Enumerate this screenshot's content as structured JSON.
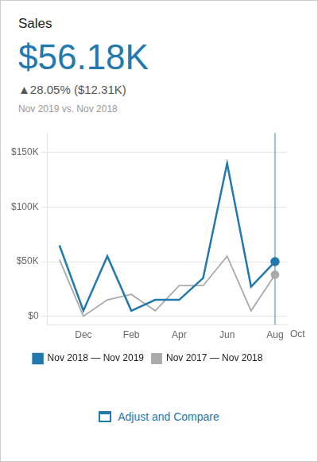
{
  "chart_data": {
    "type": "line",
    "title": "Sales",
    "subtitle": "$56.18K",
    "annotations": [
      "▲28.05% ($12.31K)",
      "Nov 2019 vs. Nov 2018",
      "Oct",
      "Adjust and Compare"
    ],
    "categories": [
      null,
      "Dec",
      null,
      "Feb",
      null,
      "Apr",
      null,
      "Jun",
      null,
      "Aug"
    ],
    "series": [
      {
        "name": "Nov 2018 — Nov 2019",
        "color": "#2179AE",
        "values": [
          65000,
          5000,
          55000,
          5000,
          15000,
          15000,
          35000,
          140000,
          27000,
          50000
        ]
      },
      {
        "name": "Nov 2017 — Nov 2018",
        "color": "#AAAAAA",
        "values": [
          52000,
          0,
          15000,
          20000,
          5000,
          28000,
          28000,
          55000,
          5000,
          38000
        ]
      }
    ],
    "ylim": [
      -8000,
      168000
    ],
    "yticks": [
      {
        "value": 0,
        "label": "$0"
      },
      {
        "value": 50000,
        "label": "$50K"
      },
      {
        "value": 100000,
        "label": "$100K"
      },
      {
        "value": 150000,
        "label": "$150K"
      }
    ],
    "grid": true,
    "legend": "bottom"
  }
}
